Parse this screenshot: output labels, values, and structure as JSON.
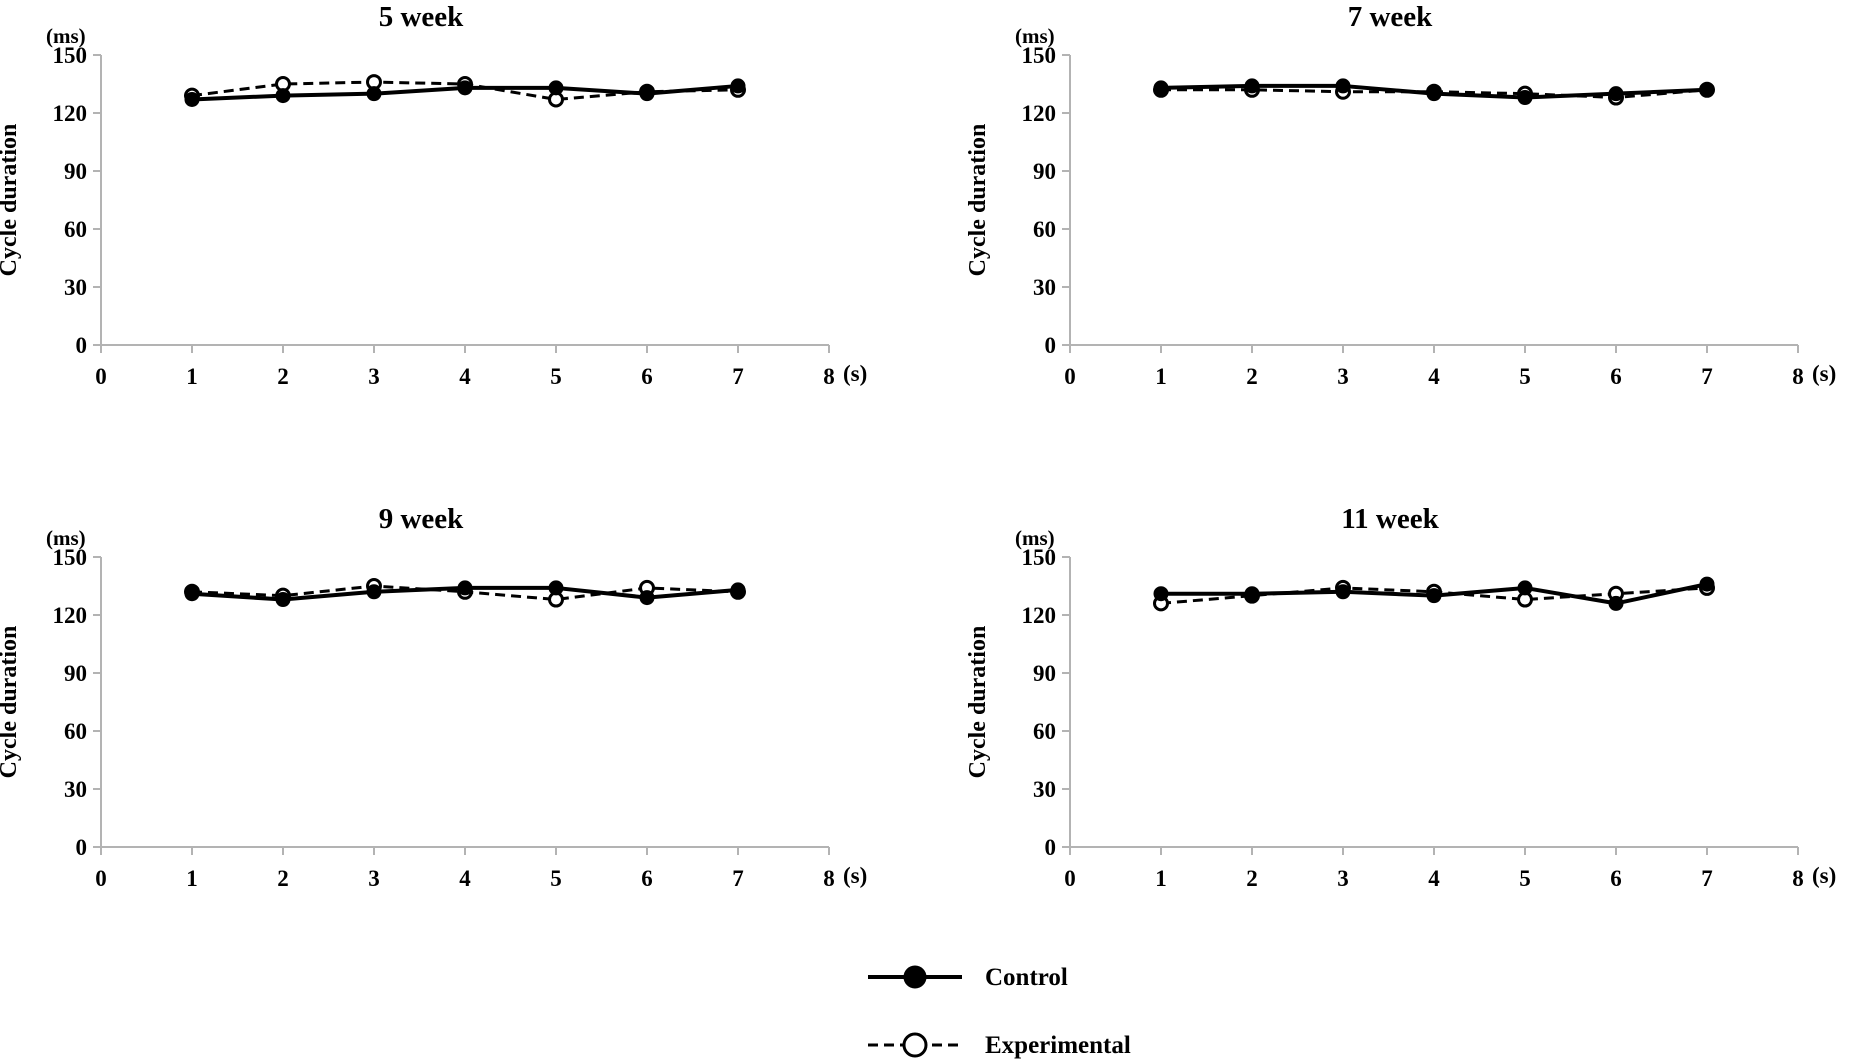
{
  "colors": {
    "axis": "#b3b3b3",
    "line": "#000000",
    "background": "#ffffff"
  },
  "legend": {
    "placement": "bottom-center",
    "items": [
      {
        "label": "Control",
        "style": "solid",
        "marker": "filled-circle"
      },
      {
        "label": "Experimental",
        "style": "dashed",
        "marker": "open-circle"
      }
    ]
  },
  "chart_data": [
    {
      "type": "line",
      "title": "5 week",
      "ylabel": "Cycle duration",
      "yunit": "(ms)",
      "xunit": "(s)",
      "xlim": [
        0,
        8
      ],
      "ylim": [
        0,
        150
      ],
      "xticks": [
        0,
        1,
        2,
        3,
        4,
        5,
        6,
        7,
        8
      ],
      "yticks": [
        0,
        30,
        60,
        90,
        120,
        150
      ],
      "x": [
        1,
        2,
        3,
        4,
        5,
        6,
        7
      ],
      "series": [
        {
          "name": "Control",
          "values": [
            127,
            129,
            130,
            133,
            133,
            130,
            134
          ]
        },
        {
          "name": "Experimental",
          "values": [
            129,
            135,
            136,
            135,
            127,
            131,
            132
          ]
        }
      ]
    },
    {
      "type": "line",
      "title": "7 week",
      "ylabel": "Cycle duration",
      "yunit": "(ms)",
      "xunit": "(s)",
      "xlim": [
        0,
        8
      ],
      "ylim": [
        0,
        150
      ],
      "xticks": [
        0,
        1,
        2,
        3,
        4,
        5,
        6,
        7,
        8
      ],
      "yticks": [
        0,
        30,
        60,
        90,
        120,
        150
      ],
      "x": [
        1,
        2,
        3,
        4,
        5,
        6,
        7
      ],
      "series": [
        {
          "name": "Control",
          "values": [
            133,
            134,
            134,
            130,
            128,
            130,
            132
          ]
        },
        {
          "name": "Experimental",
          "values": [
            132,
            132,
            131,
            131,
            130,
            128,
            132
          ]
        }
      ]
    },
    {
      "type": "line",
      "title": "9 week",
      "ylabel": "Cycle duration",
      "yunit": "(ms)",
      "xunit": "(s)",
      "xlim": [
        0,
        8
      ],
      "ylim": [
        0,
        150
      ],
      "xticks": [
        0,
        1,
        2,
        3,
        4,
        5,
        6,
        7,
        8
      ],
      "yticks": [
        0,
        30,
        60,
        90,
        120,
        150
      ],
      "x": [
        1,
        2,
        3,
        4,
        5,
        6,
        7
      ],
      "series": [
        {
          "name": "Control",
          "values": [
            131,
            128,
            132,
            134,
            134,
            129,
            133
          ]
        },
        {
          "name": "Experimental",
          "values": [
            132,
            130,
            135,
            132,
            128,
            134,
            132
          ]
        }
      ]
    },
    {
      "type": "line",
      "title": "11 week",
      "ylabel": "Cycle duration",
      "yunit": "(ms)",
      "xunit": "(s)",
      "xlim": [
        0,
        8
      ],
      "ylim": [
        0,
        150
      ],
      "xticks": [
        0,
        1,
        2,
        3,
        4,
        5,
        6,
        7,
        8
      ],
      "yticks": [
        0,
        30,
        60,
        90,
        120,
        150
      ],
      "x": [
        1,
        2,
        3,
        4,
        5,
        6,
        7
      ],
      "series": [
        {
          "name": "Control",
          "values": [
            131,
            131,
            132,
            130,
            134,
            126,
            136
          ]
        },
        {
          "name": "Experimental",
          "values": [
            126,
            130,
            134,
            132,
            128,
            131,
            134
          ]
        }
      ]
    }
  ]
}
